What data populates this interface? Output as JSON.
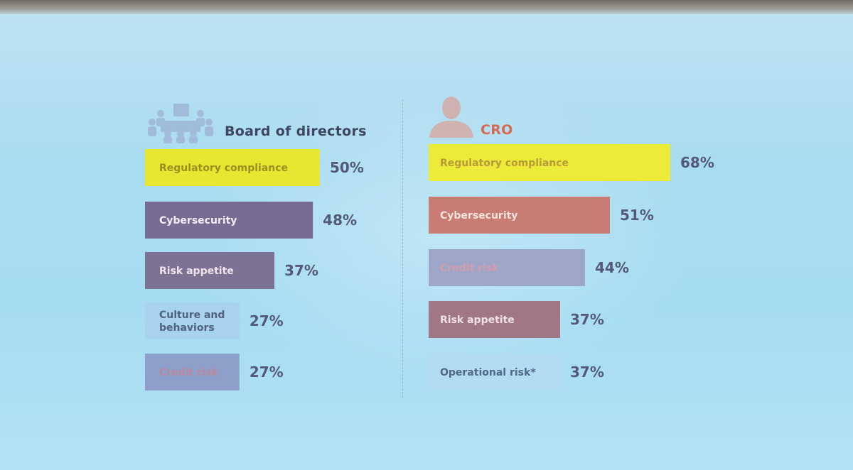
{
  "chart_data": [
    {
      "type": "bar",
      "orientation": "horizontal",
      "title": "Board of directors",
      "categories": [
        "Regulatory compliance",
        "Cybersecurity",
        "Risk appetite",
        "Culture and behaviors",
        "Credit risk"
      ],
      "values": [
        50,
        48,
        37,
        27,
        27
      ],
      "value_labels": [
        "50%",
        "48%",
        "37%",
        "27%",
        "27%"
      ],
      "colors": [
        "#e7e732",
        "#756b93",
        "#7b7294",
        "#a7d3ef",
        "#8ea0c9"
      ],
      "label_colors": [
        "#9a9020",
        "#f4eef8",
        "#f1e4ee",
        "#51617f",
        "#b8889e"
      ],
      "icon": "boardroom-icon"
    },
    {
      "type": "bar",
      "orientation": "horizontal",
      "title": "CRO",
      "categories": [
        "Regulatory compliance",
        "Cybersecurity",
        "Credit risk",
        "Risk appetite",
        "Operational risk*"
      ],
      "values": [
        68,
        51,
        44,
        37,
        37
      ],
      "value_labels": [
        "68%",
        "51%",
        "44%",
        "37%",
        "37%"
      ],
      "colors": [
        "#eceb3a",
        "#c97c74",
        "#9ea6c7",
        "#a17786",
        "#b1dcf2"
      ],
      "label_colors": [
        "#b59a36",
        "#f7e2de",
        "#d49db0",
        "#f1e2ea",
        "#516784"
      ],
      "icon": "person-icon"
    }
  ]
}
